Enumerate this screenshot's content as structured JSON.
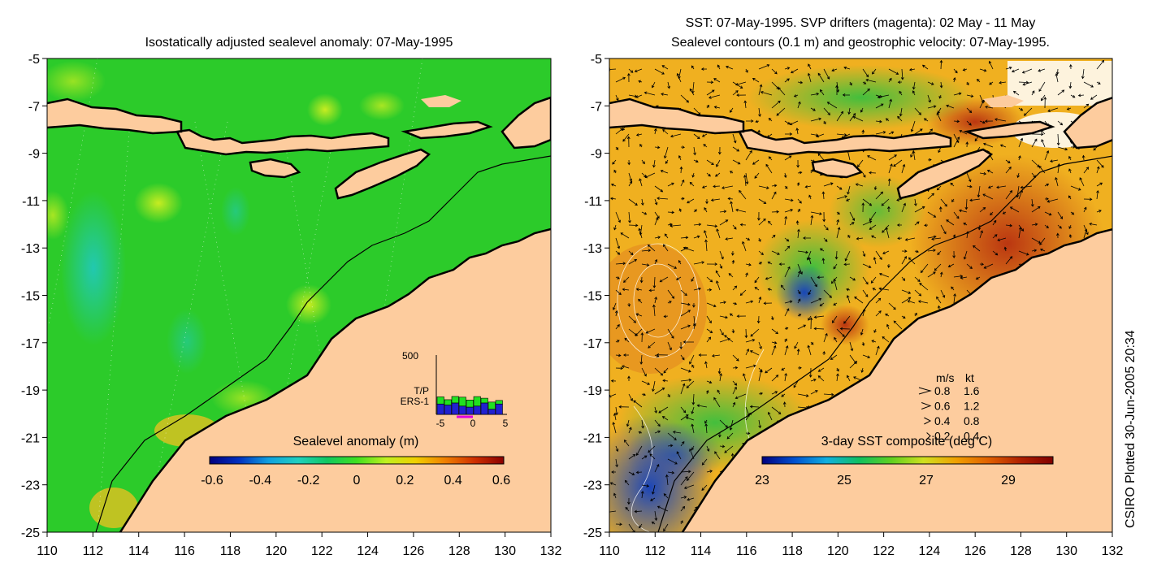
{
  "left_panel": {
    "title": "Isostatically adjusted sealevel anomaly: 07-May-1995",
    "colorbar": {
      "label": "Sealevel anomaly (m)",
      "ticks": [
        "-0.6",
        "-0.4",
        "-0.2",
        "0",
        "0.2",
        "0.4",
        "0.6"
      ],
      "colors": [
        "#00007f",
        "#0030c0",
        "#10a0e0",
        "#20d0c0",
        "#10c860",
        "#40e020",
        "#c0f020",
        "#f0d000",
        "#f08000",
        "#d03000",
        "#8a0000"
      ]
    },
    "inset": {
      "ymax_label": "500",
      "series": [
        "T/P",
        "ERS-1"
      ],
      "series_colors": [
        "#20e020",
        "#2020d0"
      ],
      "xticks": [
        "-5",
        "0",
        "5"
      ],
      "tp_counts": [
        60,
        45,
        55,
        75,
        60,
        80,
        40,
        60,
        30
      ],
      "ers_counts": [
        50,
        45,
        55,
        40,
        35,
        40,
        55,
        25,
        50
      ]
    }
  },
  "right_panel": {
    "title_line1": "SST: 07-May-1995. SVP drifters (magenta): 02 May - 11 May",
    "title_line2": "Sealevel contours (0.1 m) and geostrophic velocity: 07-May-1995.",
    "colorbar": {
      "label": "3-day SST composite (deg C)",
      "ticks": [
        "23",
        "25",
        "27",
        "29"
      ],
      "colors": [
        "#00007f",
        "#0050d0",
        "#10b0e0",
        "#10c060",
        "#60d020",
        "#d0e020",
        "#f0a000",
        "#e06000",
        "#b02000",
        "#800000"
      ]
    },
    "legend": {
      "header_ms": "m/s",
      "header_kt": "kt",
      "rows": [
        {
          "ms": "0.8",
          "kt": "1.6"
        },
        {
          "ms": "0.6",
          "kt": "1.2"
        },
        {
          "ms": "0.4",
          "kt": "0.8"
        },
        {
          "ms": "0.2",
          "kt": "0.4"
        }
      ]
    }
  },
  "axes": {
    "xticks": [
      "110",
      "112",
      "114",
      "116",
      "118",
      "120",
      "122",
      "124",
      "126",
      "128",
      "130",
      "132"
    ],
    "yticks": [
      "-5",
      "-7",
      "-9",
      "-11",
      "-13",
      "-15",
      "-17",
      "-19",
      "-21",
      "-23",
      "-25"
    ]
  },
  "map_colors": {
    "land": "#fdcc9e",
    "coast": "#000000",
    "sla_ocean": "#2ccb2a",
    "sst_ocean": "#f0b020"
  },
  "credit": "CSIRO Plotted 30-Jun-2005 20:34"
}
